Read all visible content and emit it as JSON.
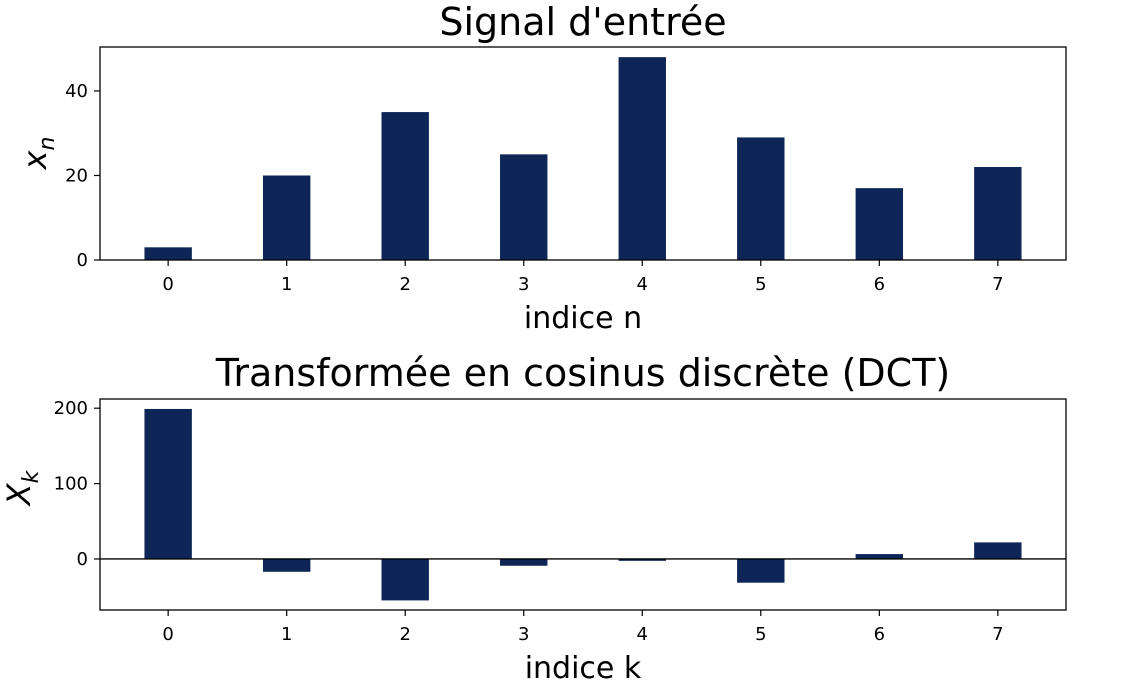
{
  "colors": {
    "bar": "#0e2657",
    "axis": "#000000",
    "background": "#ffffff"
  },
  "chart_data": [
    {
      "type": "bar",
      "title": "Signal d'entrée",
      "xlabel": "indice n",
      "ylabel": "x",
      "ylabel_sub": "n",
      "categories": [
        "0",
        "1",
        "2",
        "3",
        "4",
        "5",
        "6",
        "7"
      ],
      "values": [
        3,
        20,
        35,
        25,
        48,
        29,
        17,
        22
      ],
      "ylim": [
        0,
        50.4
      ],
      "yticks": [
        0,
        20,
        40
      ],
      "zero_line": false,
      "grid": false
    },
    {
      "type": "bar",
      "title": "Transformée en cosinus discrète (DCT)",
      "xlabel": "indice k",
      "ylabel": "X",
      "ylabel_sub": "k",
      "categories": [
        "0",
        "1",
        "2",
        "3",
        "4",
        "5",
        "6",
        "7"
      ],
      "values": [
        199.0,
        -17.0,
        -55.0,
        -9.0,
        -2.5,
        -31.5,
        6.5,
        22.0
      ],
      "ylim": [
        -67.7,
        212.2
      ],
      "yticks": [
        0,
        100,
        200
      ],
      "zero_line": true,
      "grid": false
    }
  ]
}
